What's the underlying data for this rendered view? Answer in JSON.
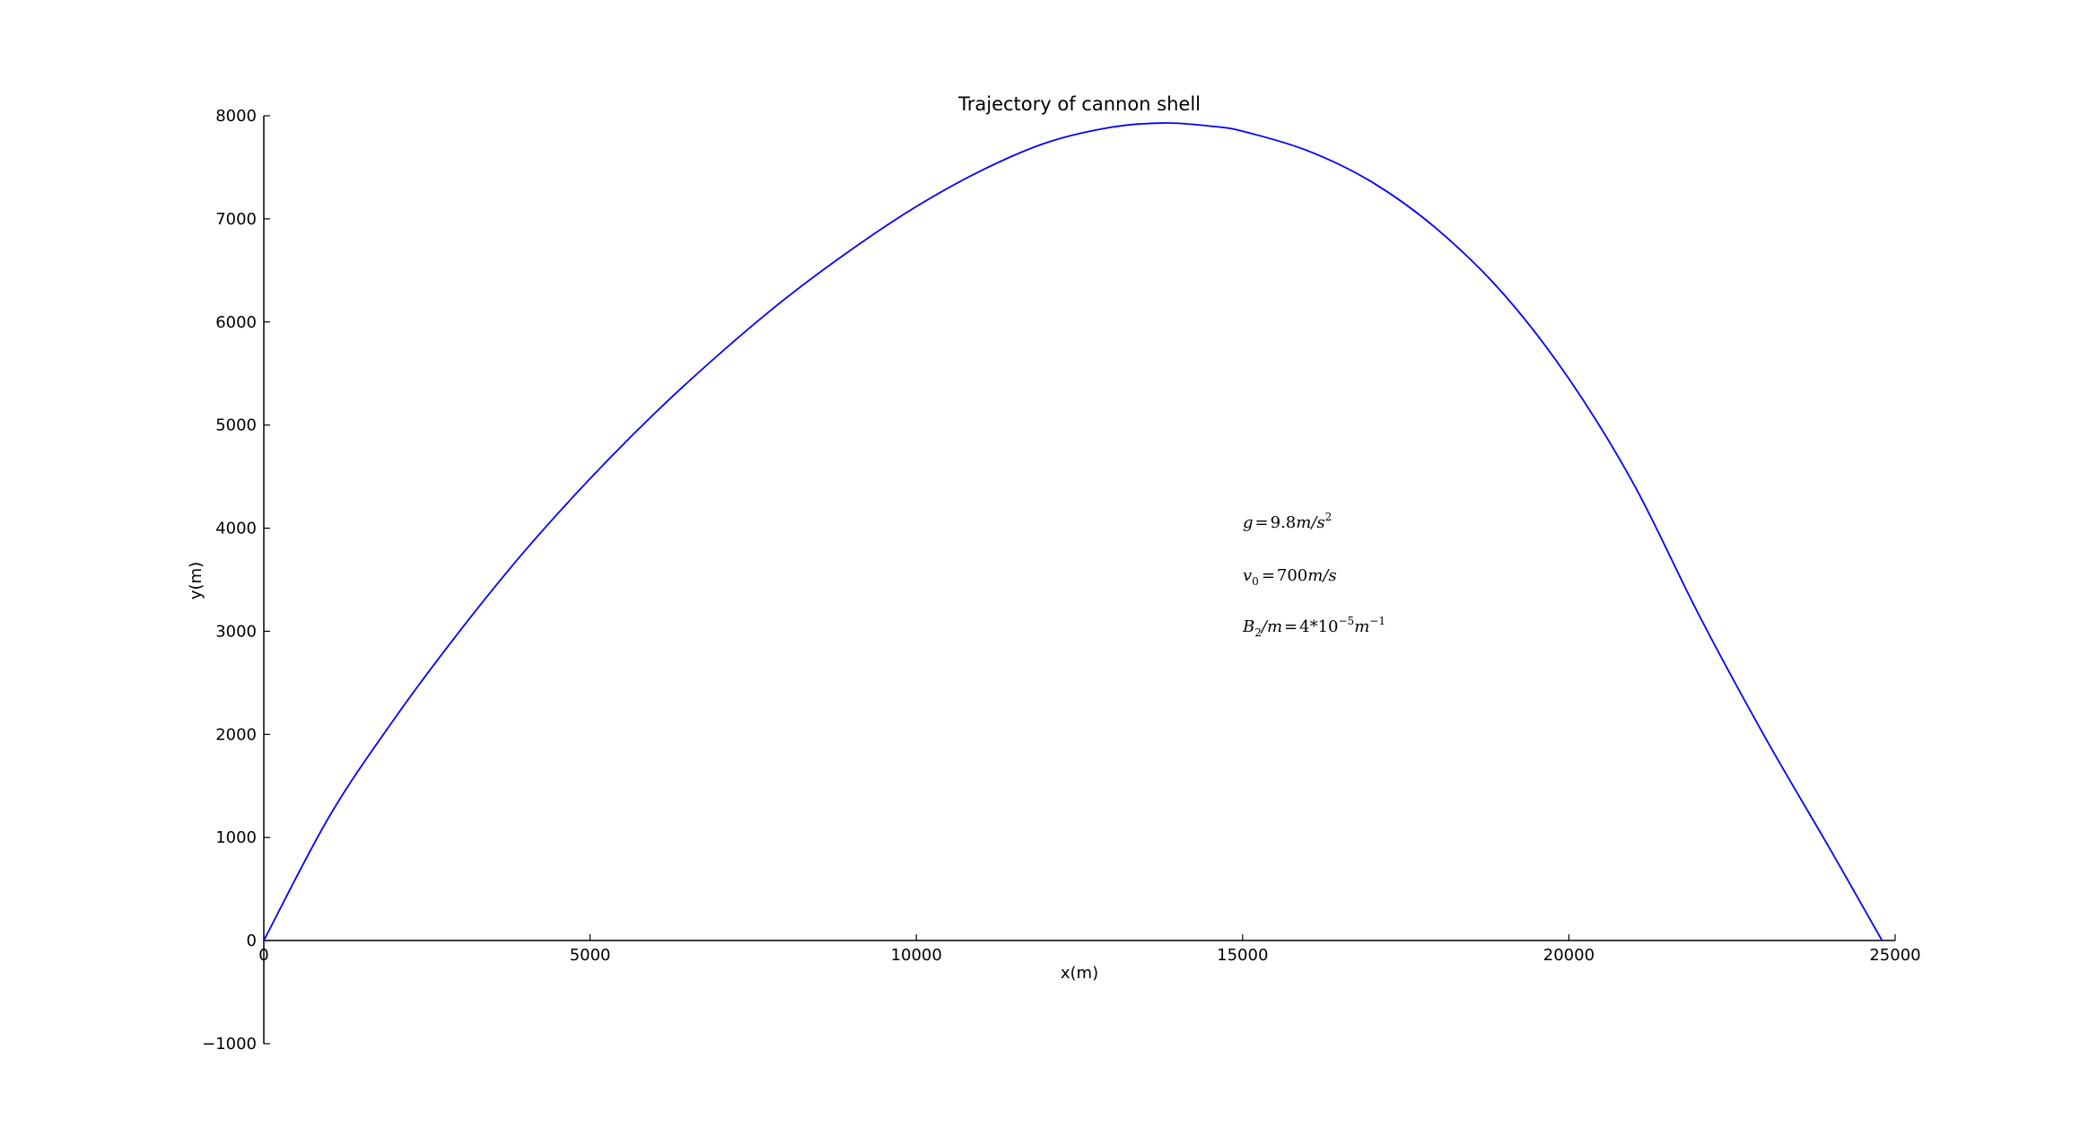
{
  "chart_data": {
    "type": "line",
    "title": "Trajectory of cannon shell",
    "xlabel": "x(m)",
    "ylabel": "y(m)",
    "xlim": [
      0,
      25000
    ],
    "ylim": [
      -1000,
      8000
    ],
    "grid": false,
    "xticks": [
      "0",
      "5000",
      "10000",
      "15000",
      "20000",
      "25000"
    ],
    "yticks": [
      "−1000",
      "0",
      "1000",
      "2000",
      "3000",
      "4000",
      "5000",
      "6000",
      "7000",
      "8000"
    ],
    "series": [
      {
        "color": "#0000ff",
        "x": [
          0,
          1000,
          2000,
          3000,
          4000,
          5000,
          6000,
          7000,
          8000,
          9000,
          10000,
          11000,
          12000,
          13000,
          13800,
          14500,
          15000,
          16000,
          17000,
          18000,
          19000,
          20000,
          21000,
          22000,
          23000,
          24000,
          24800
        ],
        "y": [
          0,
          1200,
          2150,
          3000,
          3780,
          4480,
          5120,
          5700,
          6230,
          6700,
          7120,
          7470,
          7740,
          7890,
          7930,
          7900,
          7850,
          7660,
          7350,
          6890,
          6270,
          5450,
          4420,
          3150,
          1980,
          890,
          0
        ]
      }
    ],
    "annotations": [
      {
        "id": "gravity",
        "parts": [
          "g",
          "=",
          "9.8",
          "m",
          "/",
          "s",
          "2"
        ]
      },
      {
        "id": "velocity",
        "parts": [
          "v",
          "0",
          "=",
          "700",
          "m",
          "/",
          "s"
        ]
      },
      {
        "id": "drag",
        "parts": [
          "B",
          "2",
          "/",
          "m",
          "=",
          "4",
          "*",
          "10",
          "−5",
          "m",
          "−1"
        ]
      }
    ]
  }
}
